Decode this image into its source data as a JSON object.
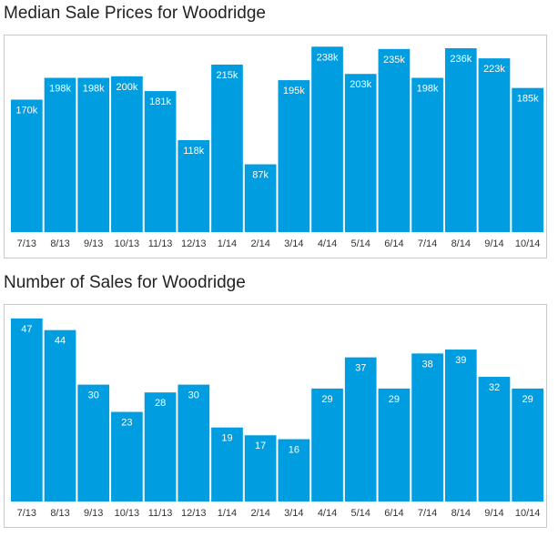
{
  "chart_data": [
    {
      "type": "bar",
      "title": "Median Sale Prices for Woodridge",
      "categories": [
        "7/13",
        "8/13",
        "9/13",
        "10/13",
        "11/13",
        "12/13",
        "1/14",
        "2/14",
        "3/14",
        "4/14",
        "5/14",
        "6/14",
        "7/14",
        "8/14",
        "9/14",
        "10/14"
      ],
      "values": [
        170,
        198,
        198,
        200,
        181,
        118,
        215,
        87,
        195,
        238,
        203,
        235,
        198,
        236,
        223,
        185
      ],
      "data_labels": [
        "170k",
        "198k",
        "198k",
        "200k",
        "181k",
        "118k",
        "215k",
        "87k",
        "195k",
        "238k",
        "203k",
        "235k",
        "198k",
        "236k",
        "223k",
        "185k"
      ],
      "ylim": [
        0,
        250
      ],
      "bar_color": "#009ee0",
      "grid": false
    },
    {
      "type": "bar",
      "title": "Number of Sales for Woodridge",
      "categories": [
        "7/13",
        "8/13",
        "9/13",
        "10/13",
        "11/13",
        "12/13",
        "1/14",
        "2/14",
        "3/14",
        "4/14",
        "5/14",
        "6/14",
        "7/14",
        "8/14",
        "9/14",
        "10/14"
      ],
      "values": [
        47,
        44,
        30,
        23,
        28,
        30,
        19,
        17,
        16,
        29,
        37,
        29,
        38,
        39,
        32,
        29
      ],
      "data_labels": [
        "47",
        "44",
        "30",
        "23",
        "28",
        "30",
        "19",
        "17",
        "16",
        "29",
        "37",
        "29",
        "38",
        "39",
        "32",
        "29"
      ],
      "ylim": [
        0,
        50
      ],
      "bar_color": "#009ee0",
      "grid": false
    }
  ]
}
